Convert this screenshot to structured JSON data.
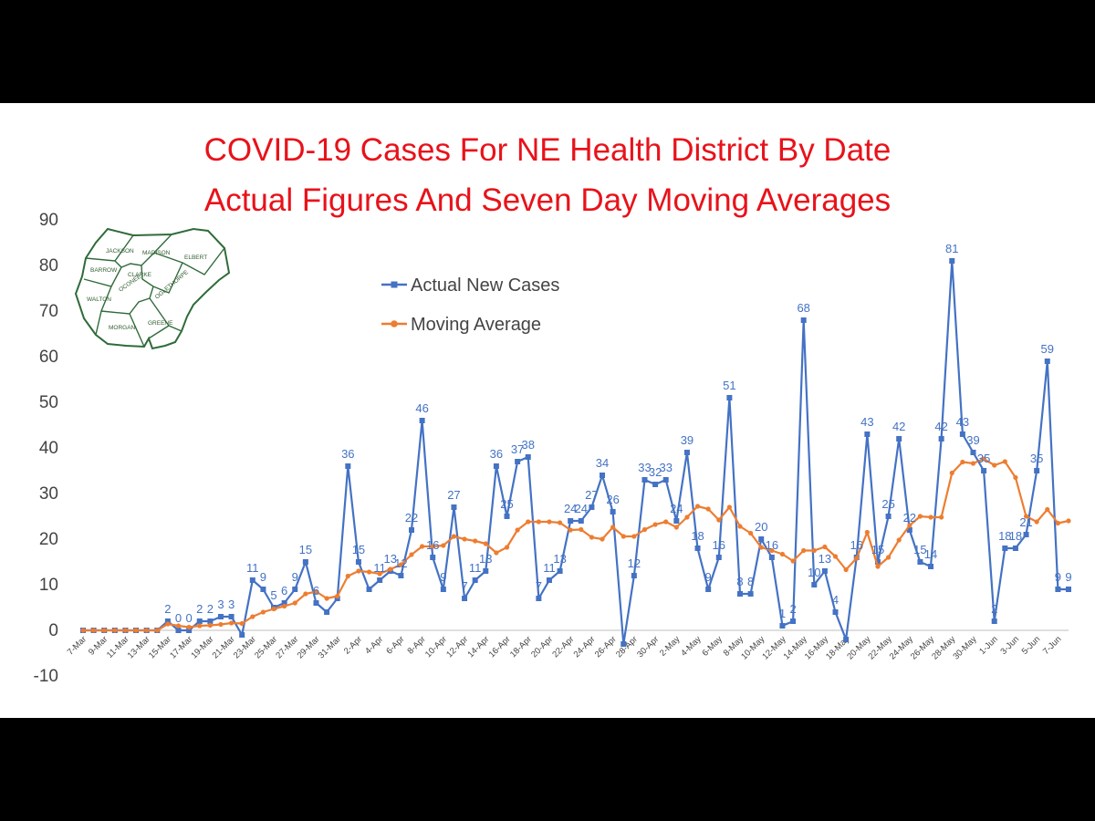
{
  "chart_data": {
    "type": "line",
    "title_line1": "COVID-19 Cases For NE Health District By Date",
    "title_line2": "Actual Figures And Seven Day Moving Averages",
    "xlabel": "",
    "ylabel": "",
    "ylim": [
      -10,
      90
    ],
    "yticks": [
      -10,
      0,
      10,
      20,
      30,
      40,
      50,
      60,
      70,
      80,
      90
    ],
    "grid": false,
    "legend_position": "top-left",
    "x_labels": [
      "7-Mar",
      "9-Mar",
      "11-Mar",
      "13-Mar",
      "15-Mar",
      "17-Mar",
      "19-Mar",
      "21-Mar",
      "23-Mar",
      "25-Mar",
      "27-Mar",
      "29-Mar",
      "31-Mar",
      "2-Apr",
      "4-Apr",
      "6-Apr",
      "8-Apr",
      "10-Apr",
      "12-Apr",
      "14-Apr",
      "16-Apr",
      "18-Apr",
      "20-Apr",
      "22-Apr",
      "24-Apr",
      "26-Apr",
      "28-Apr",
      "30-Apr",
      "2-May",
      "4-May",
      "6-May",
      "8-May",
      "10-May",
      "12-May",
      "14-May",
      "16-May",
      "18-May",
      "20-May",
      "22-May",
      "24-May",
      "26-May",
      "28-May",
      "30-May",
      "1-Jun",
      "3-Jun",
      "5-Jun",
      "7-Jun"
    ],
    "series": [
      {
        "name": "Actual New Cases",
        "color": "#4472c4",
        "values": [
          0,
          0,
          0,
          0,
          0,
          0,
          0,
          0,
          2,
          0,
          0,
          2,
          2,
          3,
          3,
          -1,
          11,
          9,
          5,
          6,
          9,
          15,
          6,
          4,
          7,
          36,
          15,
          9,
          11,
          13,
          12,
          22,
          46,
          16,
          9,
          27,
          7,
          11,
          13,
          36,
          25,
          37,
          38,
          7,
          11,
          13,
          24,
          24,
          27,
          34,
          26,
          -3,
          12,
          33,
          32,
          33,
          24,
          39,
          18,
          9,
          16,
          51,
          8,
          8,
          20,
          16,
          1,
          2,
          68,
          10,
          13,
          4,
          -2,
          16,
          43,
          15,
          25,
          42,
          22,
          15,
          14,
          42,
          81,
          43,
          39,
          35,
          2,
          18,
          18,
          21,
          35,
          59,
          9,
          9
        ]
      },
      {
        "name": "Moving Average",
        "color": "#ed7d31",
        "values": [
          0,
          0,
          0,
          0,
          0,
          0,
          0,
          0,
          1.4,
          1,
          0.7,
          1,
          1.1,
          1.3,
          1.6,
          1.5,
          3,
          4,
          4.7,
          5.3,
          6,
          8,
          8.5,
          7,
          7.5,
          11.9,
          13,
          12.8,
          12.4,
          13.4,
          14.4,
          16.6,
          18.4,
          18.4,
          18.6,
          20.6,
          20,
          19.6,
          19,
          17,
          18.2,
          22,
          23.8,
          23.8,
          23.8,
          23.6,
          22,
          22.1,
          20.4,
          20,
          22.6,
          20.6,
          20.6,
          22.1,
          23.2,
          23.8,
          22.6,
          24.8,
          27.2,
          26.6,
          24.2,
          27,
          22.8,
          21.3,
          18.2,
          17.5,
          16.7,
          15.2,
          17.5,
          17.5,
          18.3,
          16.2,
          13.3,
          15.8,
          21.5,
          14,
          16,
          19.8,
          23,
          25,
          24.8,
          24.8,
          34.5,
          36.9,
          36.6,
          37.6,
          36.2,
          37,
          33.5,
          25,
          23.8,
          26.5,
          23.5,
          24
        ]
      }
    ],
    "point_labels": [
      {
        "i": 8,
        "text": "2"
      },
      {
        "i": 9,
        "text": "0"
      },
      {
        "i": 10,
        "text": "0"
      },
      {
        "i": 11,
        "text": "2"
      },
      {
        "i": 12,
        "text": "2"
      },
      {
        "i": 13,
        "text": "3"
      },
      {
        "i": 14,
        "text": "3"
      },
      {
        "i": 16,
        "text": "11"
      },
      {
        "i": 17,
        "text": "9"
      },
      {
        "i": 18,
        "text": "5"
      },
      {
        "i": 19,
        "text": "6"
      },
      {
        "i": 20,
        "text": "9"
      },
      {
        "i": 21,
        "text": "15"
      },
      {
        "i": 22,
        "text": "6"
      },
      {
        "i": 25,
        "text": "36"
      },
      {
        "i": 26,
        "text": "15"
      },
      {
        "i": 28,
        "text": "11"
      },
      {
        "i": 29,
        "text": "13"
      },
      {
        "i": 30,
        "text": "12"
      },
      {
        "i": 31,
        "text": "22"
      },
      {
        "i": 32,
        "text": "46"
      },
      {
        "i": 33,
        "text": "16"
      },
      {
        "i": 34,
        "text": "9"
      },
      {
        "i": 35,
        "text": "27"
      },
      {
        "i": 36,
        "text": "7"
      },
      {
        "i": 37,
        "text": "11"
      },
      {
        "i": 38,
        "text": "13"
      },
      {
        "i": 39,
        "text": "36"
      },
      {
        "i": 40,
        "text": "25"
      },
      {
        "i": 41,
        "text": "37"
      },
      {
        "i": 42,
        "text": "38"
      },
      {
        "i": 43,
        "text": "7"
      },
      {
        "i": 44,
        "text": "11"
      },
      {
        "i": 45,
        "text": "13"
      },
      {
        "i": 46,
        "text": "24"
      },
      {
        "i": 47,
        "text": "24"
      },
      {
        "i": 48,
        "text": "27"
      },
      {
        "i": 49,
        "text": "34"
      },
      {
        "i": 50,
        "text": "26"
      },
      {
        "i": 52,
        "text": "12"
      },
      {
        "i": 53,
        "text": "33"
      },
      {
        "i": 54,
        "text": "32"
      },
      {
        "i": 55,
        "text": "33"
      },
      {
        "i": 56,
        "text": "24"
      },
      {
        "i": 57,
        "text": "39"
      },
      {
        "i": 58,
        "text": "18"
      },
      {
        "i": 59,
        "text": "9"
      },
      {
        "i": 60,
        "text": "16"
      },
      {
        "i": 61,
        "text": "51"
      },
      {
        "i": 62,
        "text": "8"
      },
      {
        "i": 63,
        "text": "8"
      },
      {
        "i": 64,
        "text": "20"
      },
      {
        "i": 65,
        "text": "16"
      },
      {
        "i": 66,
        "text": "1"
      },
      {
        "i": 67,
        "text": "2"
      },
      {
        "i": 68,
        "text": "68"
      },
      {
        "i": 69,
        "text": "10"
      },
      {
        "i": 70,
        "text": "13"
      },
      {
        "i": 71,
        "text": "4"
      },
      {
        "i": 73,
        "text": "16"
      },
      {
        "i": 74,
        "text": "43"
      },
      {
        "i": 75,
        "text": "15"
      },
      {
        "i": 76,
        "text": "25"
      },
      {
        "i": 77,
        "text": "42"
      },
      {
        "i": 78,
        "text": "22"
      },
      {
        "i": 79,
        "text": "15"
      },
      {
        "i": 80,
        "text": "14"
      },
      {
        "i": 81,
        "text": "42"
      },
      {
        "i": 82,
        "text": "81"
      },
      {
        "i": 83,
        "text": "43"
      },
      {
        "i": 84,
        "text": "39"
      },
      {
        "i": 85,
        "text": "35"
      },
      {
        "i": 86,
        "text": "2"
      },
      {
        "i": 87,
        "text": "18"
      },
      {
        "i": 88,
        "text": "18"
      },
      {
        "i": 89,
        "text": "21"
      },
      {
        "i": 90,
        "text": "35"
      },
      {
        "i": 91,
        "text": "59"
      },
      {
        "i": 92,
        "text": "9"
      },
      {
        "i": 93,
        "text": "9"
      }
    ]
  },
  "map_inset": {
    "counties": [
      "JACKSON",
      "MADISON",
      "ELBERT",
      "BARROW",
      "CLARKE",
      "OCONEE",
      "OGLETHORPE",
      "WALTON",
      "MORGAN",
      "GREENE"
    ],
    "fill": "#ffffff",
    "stroke": "#2f6b3a"
  }
}
